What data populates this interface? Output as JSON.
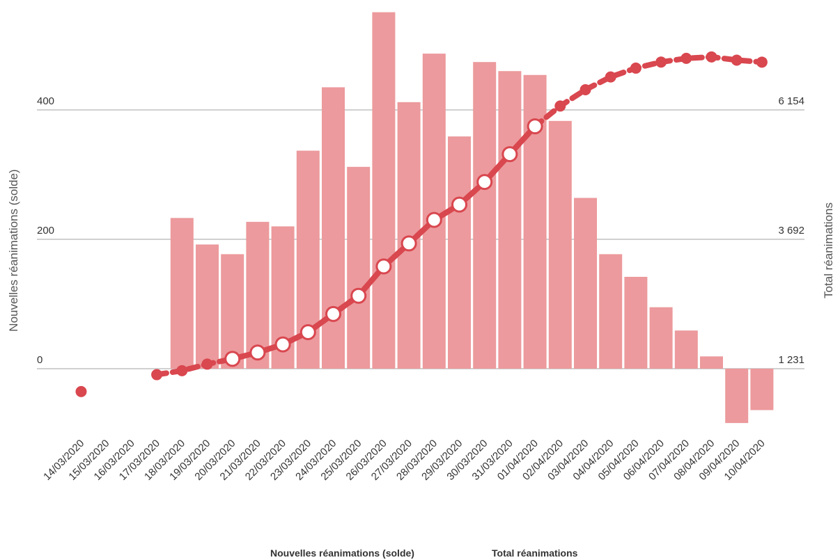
{
  "chart_data": {
    "type": "bar",
    "categories": [
      "14/03/2020",
      "15/03/2020",
      "16/03/2020",
      "17/03/2020",
      "18/03/2020",
      "19/03/2020",
      "20/03/2020",
      "21/03/2020",
      "22/03/2020",
      "23/03/2020",
      "24/03/2020",
      "25/03/2020",
      "26/03/2020",
      "27/03/2020",
      "28/03/2020",
      "29/03/2020",
      "30/03/2020",
      "31/03/2020",
      "01/04/2020",
      "02/04/2020",
      "03/04/2020",
      "04/04/2020",
      "05/04/2020",
      "06/04/2020",
      "07/04/2020",
      "08/04/2020",
      "09/04/2020",
      "10/04/2020"
    ],
    "series": [
      {
        "name": "Nouvelles réanimations (solde)",
        "type": "bar",
        "axis": "left",
        "color": "#ec9a9d",
        "values": [
          null,
          null,
          null,
          null,
          233,
          192,
          177,
          227,
          220,
          337,
          435,
          312,
          551,
          412,
          487,
          359,
          474,
          460,
          454,
          383,
          264,
          177,
          142,
          95,
          59,
          19,
          -84,
          -64
        ]
      },
      {
        "name": "Total réanimations",
        "type": "line",
        "axis": "right",
        "color": "#d9474f",
        "values": [
          796,
          null,
          null,
          1118,
          1193,
          1318,
          1418,
          1539,
          1693,
          1926,
          2272,
          2618,
          3176,
          3614,
          4061,
          4353,
          4782,
          5312,
          5842,
          6228,
          6538,
          6781,
          6949,
          7064,
          7135,
          7162,
          7101,
          7063
        ]
      }
    ],
    "y_left": {
      "label": "Nouvelles réanimations (solde)",
      "ticks": [
        "0",
        "200",
        "400"
      ],
      "lim": [
        -100,
        550
      ]
    },
    "y_right": {
      "label": "Total réanimations",
      "ticks": [
        "1 231",
        "3 692",
        "6 154"
      ],
      "lim": [
        1231,
        6154
      ]
    },
    "legend": {
      "placement": "bottom",
      "items": [
        "Nouvelles réanimations (solde)",
        "Total réanimations"
      ]
    },
    "grid": true
  }
}
